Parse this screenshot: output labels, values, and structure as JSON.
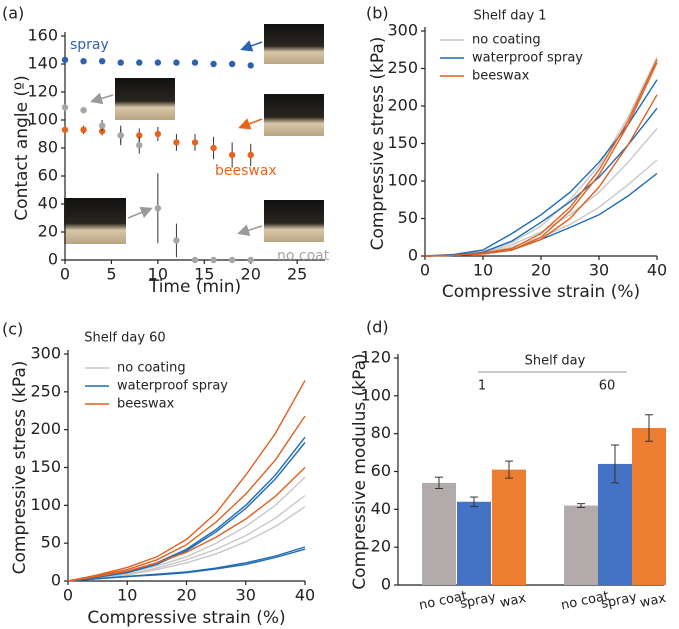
{
  "chart_data": [
    {
      "type": "scatter",
      "panel": "(a)",
      "xlabel": "Time (min)",
      "ylabel": "Contact angle (º)",
      "xlim": [
        0,
        28
      ],
      "xticks": [
        0,
        5,
        10,
        15,
        20,
        25
      ],
      "ylim": [
        0,
        160
      ],
      "yticks": [
        0,
        20,
        40,
        60,
        80,
        100,
        120,
        140,
        160
      ],
      "x": [
        0,
        2,
        4,
        6,
        8,
        10,
        12,
        14,
        16,
        18,
        20
      ],
      "series": [
        {
          "name": "spray",
          "color": "#2e62ad",
          "values": [
            143,
            142,
            142,
            141,
            141,
            141,
            141,
            141,
            140,
            140,
            139
          ],
          "errors": [
            2,
            2,
            2,
            2,
            2,
            2,
            2,
            2,
            2,
            2,
            2
          ]
        },
        {
          "name": "beeswax",
          "color": "#e8641e",
          "values": [
            93,
            93,
            92,
            89,
            89,
            90,
            84,
            84,
            80,
            75,
            75
          ],
          "errors": [
            3,
            3,
            3,
            7,
            5,
            5,
            6,
            6,
            8,
            9,
            8
          ]
        },
        {
          "name": "no coat",
          "color": "#a5a5a5",
          "values": [
            109,
            107,
            96,
            89,
            82,
            37,
            14,
            0,
            0,
            0,
            0
          ],
          "errors": [
            3,
            2,
            4,
            5,
            6,
            25,
            12,
            1,
            1,
            1,
            1
          ]
        }
      ]
    },
    {
      "type": "line",
      "panel": "(b)",
      "title": "Shelf day 1",
      "xlabel": "Compressive strain (%)",
      "ylabel": "Compressive stress (kPa)",
      "xlim": [
        0,
        40
      ],
      "xticks": [
        0,
        10,
        20,
        30,
        40
      ],
      "ylim": [
        0,
        300
      ],
      "yticks": [
        0,
        50,
        100,
        150,
        200,
        250,
        300
      ],
      "x": [
        0,
        5,
        10,
        15,
        20,
        25,
        30,
        35,
        40
      ],
      "series": [
        {
          "name": "no coating",
          "color": "#c8c8c8",
          "replicates": [
            [
              0,
              2,
              6,
              18,
              40,
              75,
              120,
              185,
              265
            ],
            [
              0,
              2,
              5,
              15,
              32,
              55,
              85,
              125,
              170
            ],
            [
              0,
              1,
              4,
              12,
              25,
              42,
              65,
              95,
              128
            ]
          ]
        },
        {
          "name": "waterproof spray",
          "color": "#1f6bb5",
          "replicates": [
            [
              0,
              2,
              8,
              30,
              55,
              85,
              125,
              175,
              235
            ],
            [
              0,
              1,
              5,
              20,
              45,
              72,
              105,
              148,
              197
            ],
            [
              0,
              1,
              3,
              8,
              22,
              38,
              55,
              80,
              110
            ]
          ]
        },
        {
          "name": "beeswax",
          "color": "#e06020",
          "replicates": [
            [
              0,
              1,
              4,
              10,
              30,
              65,
              115,
              180,
              262
            ],
            [
              0,
              1,
              3,
              8,
              25,
              60,
              108,
              175,
              258
            ],
            [
              0,
              1,
              3,
              8,
              22,
              50,
              92,
              148,
              215
            ]
          ]
        }
      ]
    },
    {
      "type": "line",
      "panel": "(c)",
      "title": "Shelf day 60",
      "xlabel": "Compressive strain (%)",
      "ylabel": "Compressive stress (kPa)",
      "xlim": [
        0,
        40
      ],
      "xticks": [
        0,
        10,
        20,
        30,
        40
      ],
      "ylim": [
        0,
        300
      ],
      "yticks": [
        0,
        50,
        100,
        150,
        200,
        250,
        300
      ],
      "x": [
        0,
        5,
        10,
        15,
        20,
        25,
        30,
        35,
        40
      ],
      "series": [
        {
          "name": "no coating",
          "color": "#c8c8c8",
          "replicates": [
            [
              0,
              5,
              11,
              20,
              32,
              50,
              72,
              100,
              137
            ],
            [
              0,
              4,
              9,
              17,
              28,
              42,
              60,
              83,
              113
            ],
            [
              0,
              4,
              8,
              15,
              24,
              36,
              52,
              72,
              98
            ]
          ]
        },
        {
          "name": "waterproof spray",
          "color": "#1f6bb5",
          "replicates": [
            [
              0,
              5,
              12,
              24,
              42,
              68,
              100,
              140,
              190
            ],
            [
              0,
              5,
              11,
              22,
              40,
              65,
              96,
              135,
              183
            ],
            [
              0,
              3,
              6,
              9,
              12,
              17,
              24,
              33,
              45
            ],
            [
              0,
              3,
              6,
              8,
              11,
              16,
              22,
              31,
              42
            ]
          ]
        },
        {
          "name": "beeswax",
          "color": "#e06020",
          "replicates": [
            [
              0,
              8,
              18,
              32,
              55,
              90,
              140,
              195,
              265
            ],
            [
              0,
              7,
              15,
              28,
              48,
              78,
              115,
              160,
              218
            ],
            [
              0,
              6,
              13,
              24,
              38,
              58,
              82,
              112,
              150
            ]
          ]
        }
      ]
    },
    {
      "type": "bar",
      "panel": "(d)",
      "ylabel": "Compressive modulus (kPa)",
      "group_title": "Shelf day",
      "group_labels": [
        "1",
        "60"
      ],
      "ylim": [
        0,
        120
      ],
      "yticks": [
        0,
        20,
        40,
        60,
        80,
        100,
        120
      ],
      "categories": [
        "no coat",
        "spray",
        "wax",
        "no coat",
        "spray",
        "wax"
      ],
      "values": [
        54,
        44,
        61,
        42,
        64,
        83
      ],
      "errors": [
        3,
        2.5,
        4.5,
        1,
        10,
        7
      ],
      "colors": [
        "#b3abab",
        "#4472c4",
        "#ed7d31",
        "#b3abab",
        "#4472c4",
        "#ed7d31"
      ]
    }
  ]
}
